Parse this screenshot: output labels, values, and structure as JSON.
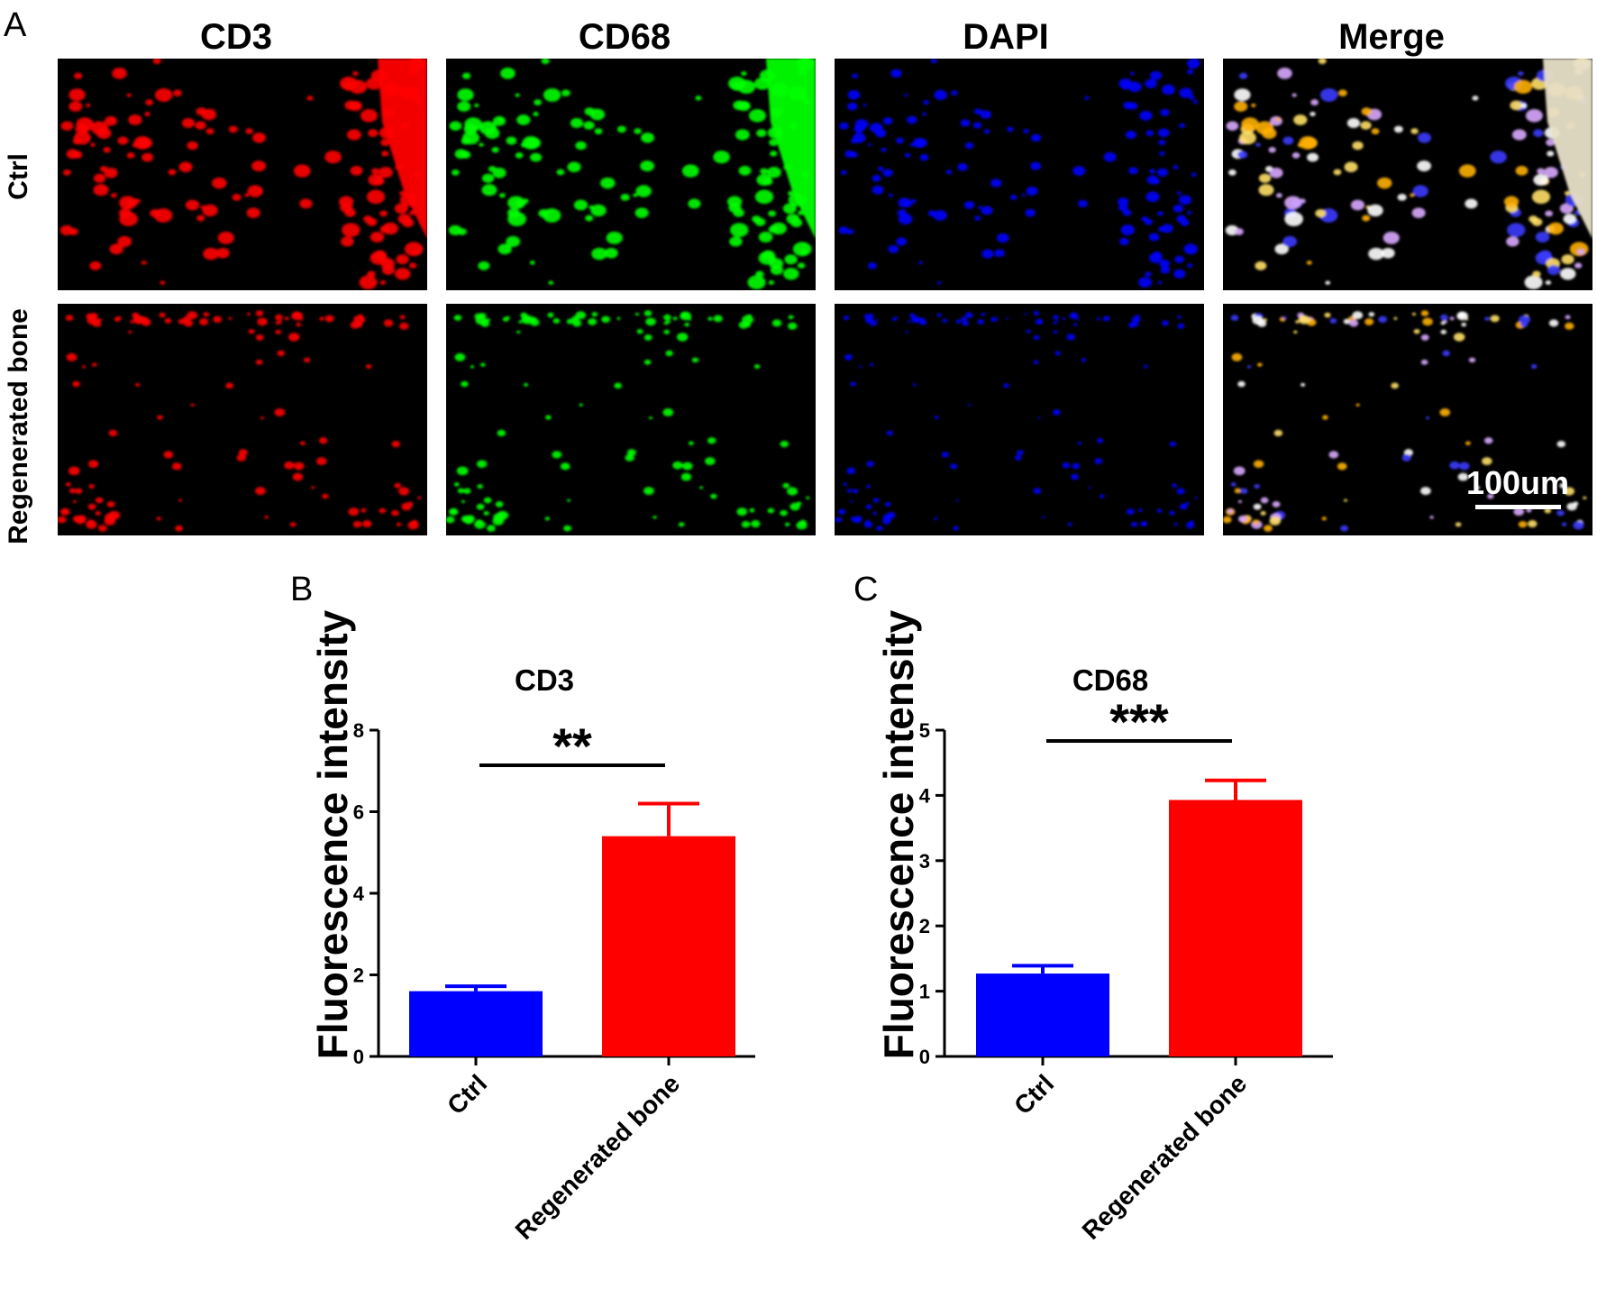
{
  "panel_labels": {
    "a": "A",
    "b": "B",
    "c": "C"
  },
  "micrograph": {
    "columns": [
      "CD3",
      "CD68",
      "DAPI",
      "Merge"
    ],
    "rows": [
      "Ctrl",
      "Regenerated bone"
    ],
    "channel_colors": [
      "#ff0000",
      "#00ff00",
      "#0000ff",
      "merge"
    ],
    "scale_bar": "100um"
  },
  "chart_data": [
    {
      "type": "bar",
      "title": "CD3",
      "ylabel": "Fluorescence intensity",
      "xlabel": "",
      "categories": [
        "Ctrl",
        "Regenerated bone"
      ],
      "values": [
        1.6,
        5.4
      ],
      "errors": [
        0.12,
        0.8
      ],
      "colors": [
        "#0000ff",
        "#ff0000"
      ],
      "ylim": [
        0,
        8
      ],
      "yticks": [
        0,
        2,
        4,
        6,
        8
      ],
      "significance": "**"
    },
    {
      "type": "bar",
      "title": "CD68",
      "ylabel": "Fluorescence intensity",
      "xlabel": "",
      "categories": [
        "Ctrl",
        "Regenerated bone"
      ],
      "values": [
        1.27,
        3.93
      ],
      "errors": [
        0.12,
        0.3
      ],
      "colors": [
        "#0000ff",
        "#ff0000"
      ],
      "ylim": [
        0,
        5
      ],
      "yticks": [
        0,
        1,
        2,
        3,
        4,
        5
      ],
      "significance": "***"
    }
  ]
}
